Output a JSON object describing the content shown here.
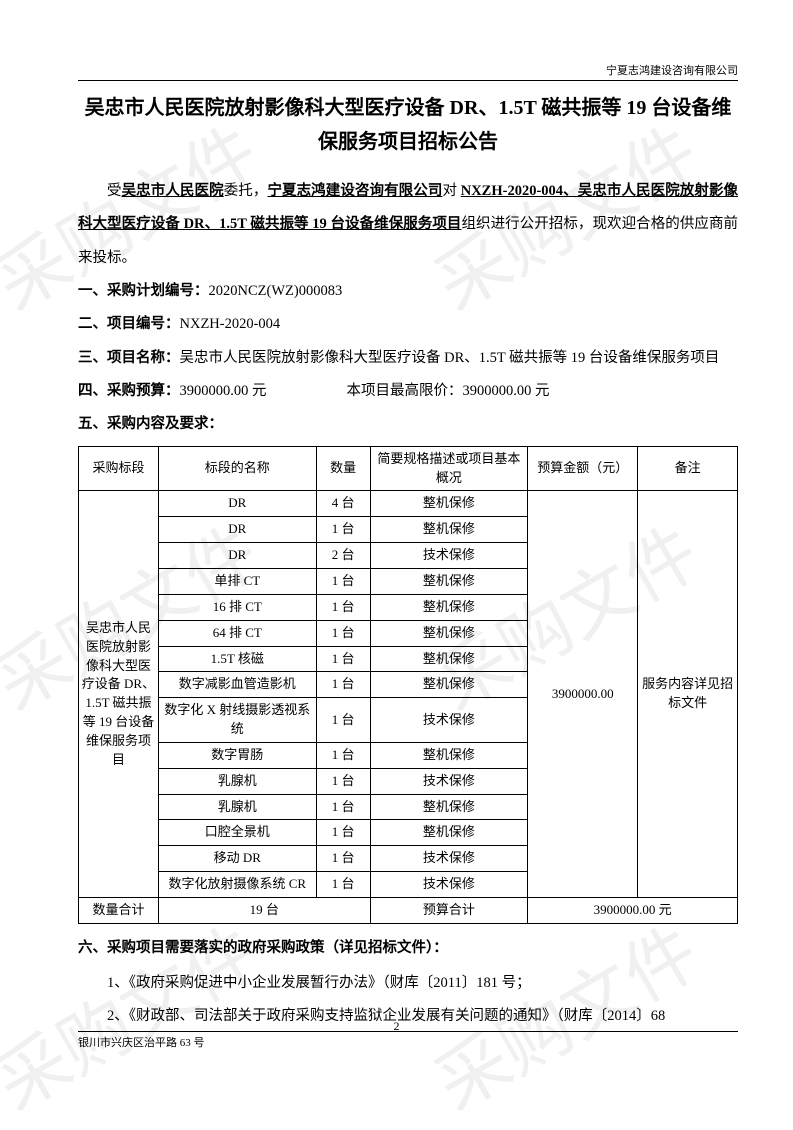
{
  "header": {
    "company": "宁夏志鸿建设咨询有限公司"
  },
  "title": "吴忠市人民医院放射影像科大型医疗设备 DR、1.5T 磁共振等 19 台设备维保服务项目招标公告",
  "intro": {
    "prefix": "受",
    "client": "吴忠市人民医院",
    "mid1": "委托，",
    "agent": "宁夏志鸿建设咨询有限公司",
    "mid2": "对 ",
    "project_ref": "NXZH-2020-004、吴忠市人民医院放射影像科大型医疗设备 DR、1.5T 磁共振等 19 台设备维保服务项目",
    "suffix": "组织进行公开招标，现欢迎合格的供应商前来投标。"
  },
  "sections": {
    "s1_label": "一、采购计划编号：",
    "s1_value": "2020NCZ(WZ)000083",
    "s2_label": "二、项目编号：",
    "s2_value": "NXZH-2020-004",
    "s3_label": "三、项目名称：",
    "s3_value": "吴忠市人民医院放射影像科大型医疗设备 DR、1.5T 磁共振等 19 台设备维保服务项目",
    "s4_label": "四、采购预算：",
    "s4_value": "3900000.00 元",
    "s4_max_label": "本项目最高限价：",
    "s4_max_value": "3900000.00 元",
    "s5_label": "五、采购内容及要求：",
    "s6_label": "六、采购项目需要落实的政府采购政策（详见招标文件）："
  },
  "table": {
    "headers": {
      "section": "采购标段",
      "name": "标段的名称",
      "qty": "数量",
      "spec": "简要规格描述或项目基本概况",
      "budget": "预算金额（元）",
      "remark": "备注"
    },
    "section_merged": "吴忠市人民医院放射影像科大型医疗设备 DR、1.5T 磁共振等 19 台设备维保服务项目",
    "budget_merged": "3900000.00",
    "remark_merged": "服务内容详见招标文件",
    "rows": [
      {
        "name": "DR",
        "qty": "4 台",
        "spec": "整机保修"
      },
      {
        "name": "DR",
        "qty": "1 台",
        "spec": "整机保修"
      },
      {
        "name": "DR",
        "qty": "2 台",
        "spec": "技术保修"
      },
      {
        "name": "单排 CT",
        "qty": "1 台",
        "spec": "整机保修"
      },
      {
        "name": "16 排 CT",
        "qty": "1 台",
        "spec": "整机保修"
      },
      {
        "name": "64 排 CT",
        "qty": "1 台",
        "spec": "整机保修"
      },
      {
        "name": "1.5T 核磁",
        "qty": "1 台",
        "spec": "整机保修"
      },
      {
        "name": "数字减影血管造影机",
        "qty": "1 台",
        "spec": "整机保修"
      },
      {
        "name": "数字化 X 射线摄影透视系统",
        "qty": "1 台",
        "spec": "技术保修"
      },
      {
        "name": "数字胃肠",
        "qty": "1 台",
        "spec": "整机保修"
      },
      {
        "name": "乳腺机",
        "qty": "1 台",
        "spec": "技术保修"
      },
      {
        "name": "乳腺机",
        "qty": "1 台",
        "spec": "整机保修"
      },
      {
        "name": "口腔全景机",
        "qty": "1 台",
        "spec": "整机保修"
      },
      {
        "name": "移动 DR",
        "qty": "1 台",
        "spec": "技术保修"
      },
      {
        "name": "数字化放射摄像系统 CR",
        "qty": "1 台",
        "spec": "技术保修"
      }
    ],
    "total_row": {
      "label": "数量合计",
      "qty": "19 台",
      "spec": "预算合计",
      "budget": "3900000.00 元"
    }
  },
  "policies": [
    "1、《政府采购促进中小企业发展暂行办法》（财库〔2011〕181 号；",
    "2、《财政部、司法部关于政府采购支持监狱企业发展有关问题的通知》（财库〔2014〕68"
  ],
  "footer": {
    "address": "银川市兴庆区治平路 63 号"
  },
  "page_number": "2",
  "watermark_text": "采购文件",
  "colors": {
    "text": "#000000",
    "watermark": "rgba(150,150,150,0.14)",
    "border": "#000000",
    "background": "#ffffff"
  }
}
